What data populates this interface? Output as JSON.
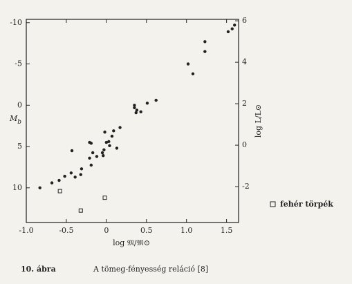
{
  "chart_data": {
    "type": "scatter",
    "x_label": "log 𝔐/𝔐⊙",
    "y_label": "M",
    "y_label_sub": "b",
    "y2_label": "log L/L⊙",
    "caption_number": "10. ábra",
    "caption": "A tömeg-fényesség reláció [8]",
    "xlim": [
      -1.0,
      1.65
    ],
    "xticks": [
      {
        "value": -1,
        "label": "-1.0"
      },
      -0.5,
      0,
      0.5,
      {
        "value": 1,
        "label": "1.0"
      },
      1.5
    ],
    "ylim": [
      14.2,
      -10.4
    ],
    "yticks": [
      -10,
      -5,
      0,
      5,
      10
    ],
    "y2lim": [
      -3.73,
      6.07
    ],
    "y2ticks": [
      6,
      4,
      2,
      0,
      -2
    ],
    "series": [
      {
        "color": "#222222",
        "marker": "circle",
        "x": [
          1.6,
          1.57,
          1.52,
          1.23,
          1.23,
          1.02,
          1.08,
          0.62,
          0.51,
          0.35,
          0.35,
          0.38,
          0.43,
          0.37,
          0.17,
          0.09,
          -0.02,
          0.07,
          0.03,
          0,
          0.04,
          0.13,
          -0.21,
          -0.19,
          -0.43,
          -0.03,
          -0.05,
          -0.04,
          -0.17,
          -0.12,
          -0.21,
          -0.19,
          -0.31,
          -0.32,
          -0.44,
          -0.52,
          -0.39,
          -0.59,
          -0.68,
          -0.83
        ],
        "values": [
          -9.7,
          -9.25,
          -8.9,
          -7.7,
          -6.5,
          -5.0,
          -3.8,
          -0.6,
          -0.25,
          0,
          0.3,
          0.6,
          0.8,
          0.9,
          2.7,
          3.1,
          3.25,
          3.75,
          4.4,
          4.5,
          4.9,
          5.2,
          4.5,
          4.6,
          5.5,
          5.4,
          5.75,
          6.1,
          5.75,
          6.2,
          6.4,
          7.25,
          7.7,
          8.4,
          8.2,
          8.6,
          8.7,
          9.1,
          9.4,
          10
        ]
      },
      {
        "name": "fehér törpék",
        "color": "#222222",
        "marker": "square",
        "x": [
          -0.58,
          -0.02,
          -0.32
        ],
        "values": [
          10.4,
          11.2,
          12.75
        ]
      }
    ]
  }
}
